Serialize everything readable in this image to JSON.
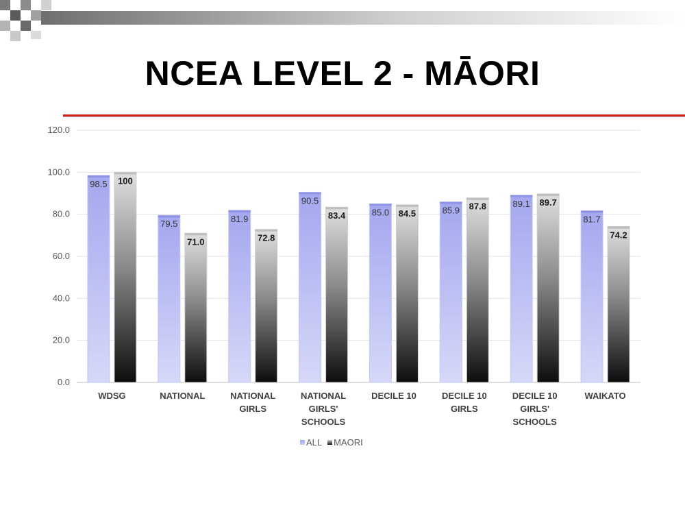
{
  "slide": {
    "title": "NCEA LEVEL 2 - MĀORI",
    "accent_color": "#d81e1e"
  },
  "chart_data": {
    "type": "bar",
    "categories": [
      [
        "WDSG"
      ],
      [
        "NATIONAL"
      ],
      [
        "NATIONAL",
        "GIRLS"
      ],
      [
        "NATIONAL",
        "GIRLS'",
        "SCHOOLS"
      ],
      [
        "DECILE 10"
      ],
      [
        "DECILE 10",
        "GIRLS"
      ],
      [
        "DECILE 10",
        "GIRLS'",
        "SCHOOLS"
      ],
      [
        "WAIKATO"
      ]
    ],
    "series": [
      {
        "name": "ALL",
        "values": [
          98.5,
          79.5,
          81.9,
          90.5,
          85.0,
          85.9,
          89.1,
          81.7
        ],
        "labels": [
          "98.5",
          "79.5",
          "81.9",
          "90.5",
          "85.0",
          "85.9",
          "89.1",
          "81.7"
        ],
        "color": "#aeb2f2"
      },
      {
        "name": "MAORI",
        "values": [
          100,
          71.0,
          72.8,
          83.4,
          84.5,
          87.8,
          89.7,
          74.2
        ],
        "labels": [
          "100",
          "71.0",
          "72.8",
          "83.4",
          "84.5",
          "87.8",
          "89.7",
          "74.2"
        ],
        "color": "#6e6e6e"
      }
    ],
    "y_ticks": [
      "0.0",
      "20.0",
      "40.0",
      "60.0",
      "80.0",
      "100.0",
      "120.0"
    ],
    "ylim": [
      0,
      120
    ],
    "grid": true,
    "legend_position": "bottom"
  }
}
